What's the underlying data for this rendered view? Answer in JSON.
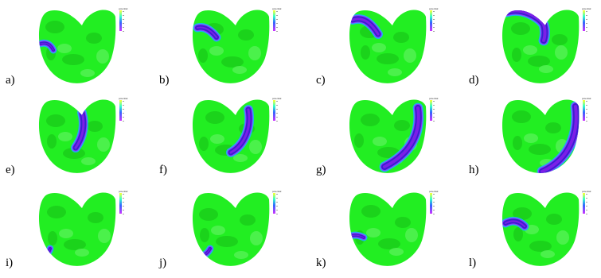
{
  "figure": {
    "panels": [
      {
        "label": "a)",
        "colorbar_title": "potential",
        "wave": "curl-left-low"
      },
      {
        "label": "b)",
        "colorbar_title": "potential",
        "wave": "arc-left-mid"
      },
      {
        "label": "c)",
        "colorbar_title": "potential",
        "wave": "arc-left-high"
      },
      {
        "label": "d)",
        "colorbar_title": "potential",
        "wave": "arc-top-sweep"
      },
      {
        "label": "e)",
        "colorbar_title": "potential",
        "wave": "band-center"
      },
      {
        "label": "f)",
        "colorbar_title": "potential",
        "wave": "band-center-right"
      },
      {
        "label": "g)",
        "colorbar_title": "potential",
        "wave": "band-right-long"
      },
      {
        "label": "h)",
        "colorbar_title": "potential",
        "wave": "band-edge-bottom"
      },
      {
        "label": "i)",
        "colorbar_title": "potential",
        "wave": "blob-left-bottom"
      },
      {
        "label": "j)",
        "colorbar_title": "potential",
        "wave": "blob-left-bottom-2"
      },
      {
        "label": "k)",
        "colorbar_title": "potential",
        "wave": "blob-left-mid"
      },
      {
        "label": "l)",
        "colorbar_title": "potential",
        "wave": "arc-left-mid-2"
      }
    ],
    "colors": {
      "background_field": "#22ee22",
      "field_patch_dark": "#18c818",
      "field_patch_light": "#5cf25c",
      "front_dark": "#3a1fd0",
      "front_core": "#7b1fe8",
      "front_edge": "#1fb0ee",
      "front_outer": "#9c2bff"
    }
  }
}
